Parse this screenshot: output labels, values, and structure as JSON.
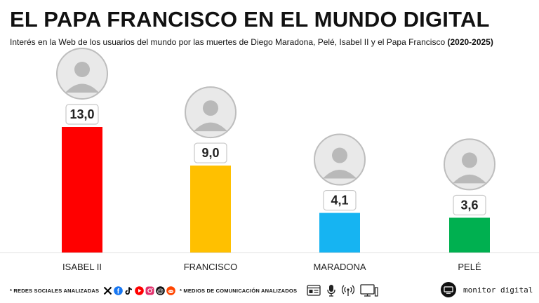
{
  "title": "EL PAPA FRANCISCO EN EL MUNDO DIGITAL",
  "subtitle": {
    "main": "Interés en la Web de los usuarios del mundo por las muertes de Diego Maradona, Pelé, Isabel II y el Papa Francisco",
    "range": "(2020-2025)"
  },
  "chart_data": {
    "type": "bar",
    "title": "EL PAPA FRANCISCO EN EL MUNDO DIGITAL",
    "xlabel": "",
    "ylabel": "",
    "ylim": [
      0,
      13
    ],
    "categories": [
      "ISABEL II",
      "FRANCISCO",
      "MARADONA",
      "PELÉ"
    ],
    "values": [
      13.0,
      9.0,
      4.1,
      3.6
    ],
    "value_labels": [
      "13,0",
      "9,0",
      "4,1",
      "3,6"
    ],
    "colors": [
      "#ff0000",
      "#ffc000",
      "#16b4f2",
      "#00b050"
    ],
    "grid": false
  },
  "footer": {
    "social_label": "* REDES SOCIALES ANALIZADAS",
    "social_icons": [
      "x-icon",
      "facebook-icon",
      "tiktok-icon",
      "youtube-icon",
      "instagram-icon",
      "threads-icon",
      "reddit-icon"
    ],
    "media_label": "* MEDIOS DE COMUNICACIÓN ANALIZADOS",
    "media_icons": [
      "web-icon",
      "microphone-icon",
      "radio-icon",
      "tv-icon"
    ],
    "brand": "monitor digital"
  },
  "colors": {
    "bar_isabel": "#ff0000",
    "bar_francisco": "#ffc000",
    "bar_maradona": "#16b4f2",
    "bar_pele": "#00b050"
  }
}
